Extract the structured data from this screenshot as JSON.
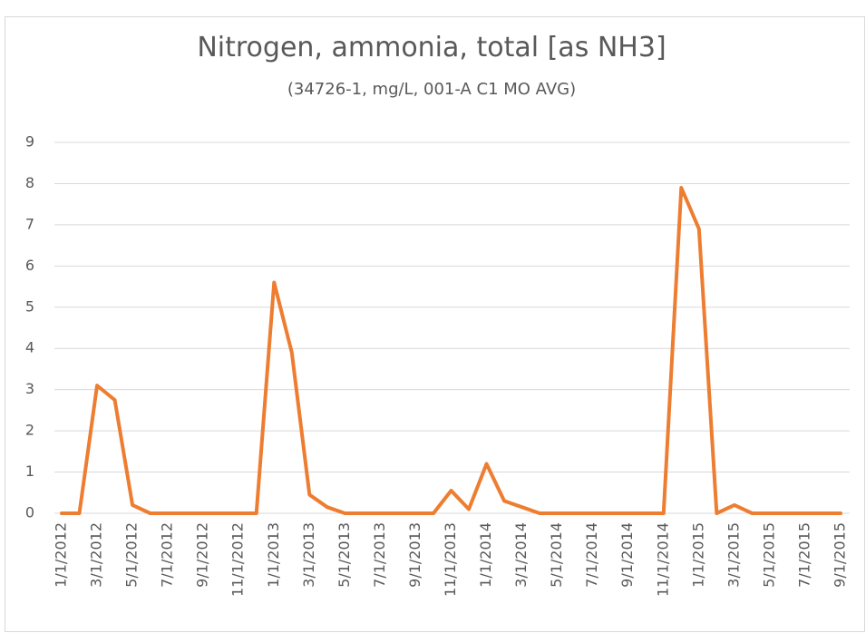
{
  "chart_data": {
    "type": "line",
    "title": "Nitrogen, ammonia, total [as NH3]",
    "subtitle": "(34726-1, mg/L, 001-A C1 MO AVG)",
    "categories": [
      "1/1/2012",
      null,
      "3/1/2012",
      null,
      "5/1/2012",
      null,
      "7/1/2012",
      null,
      "9/1/2012",
      null,
      "11/1/2012",
      null,
      "1/1/2013",
      null,
      "3/1/2013",
      null,
      "5/1/2013",
      null,
      "7/1/2013",
      null,
      "9/1/2013",
      null,
      "11/1/2013",
      null,
      "1/1/2014",
      null,
      "3/1/2014",
      null,
      "5/1/2014",
      null,
      "7/1/2014",
      null,
      "9/1/2014",
      null,
      "11/1/2014",
      null,
      "1/1/2015",
      null,
      "3/1/2015",
      null,
      "5/1/2015",
      null,
      "7/1/2015",
      null,
      "9/1/2015"
    ],
    "series": [
      {
        "name": "Nitrogen, ammonia, total [as NH3]",
        "color": "#ed7d31",
        "values": [
          0,
          0,
          3.1,
          2.75,
          0.2,
          0,
          0,
          0,
          0,
          0,
          0,
          0,
          5.6,
          3.9,
          0.45,
          0.15,
          0,
          0,
          0,
          0,
          0,
          0,
          0.55,
          0.1,
          1.2,
          0.3,
          0.15,
          0,
          0,
          0,
          0,
          0,
          0,
          0,
          0,
          7.9,
          6.9,
          0,
          0.2,
          0,
          0,
          0,
          0,
          0,
          0
        ]
      }
    ],
    "ylim": [
      0,
      9
    ],
    "yticks": [
      0,
      1,
      2,
      3,
      4,
      5,
      6,
      7,
      8,
      9
    ],
    "grid": true
  }
}
